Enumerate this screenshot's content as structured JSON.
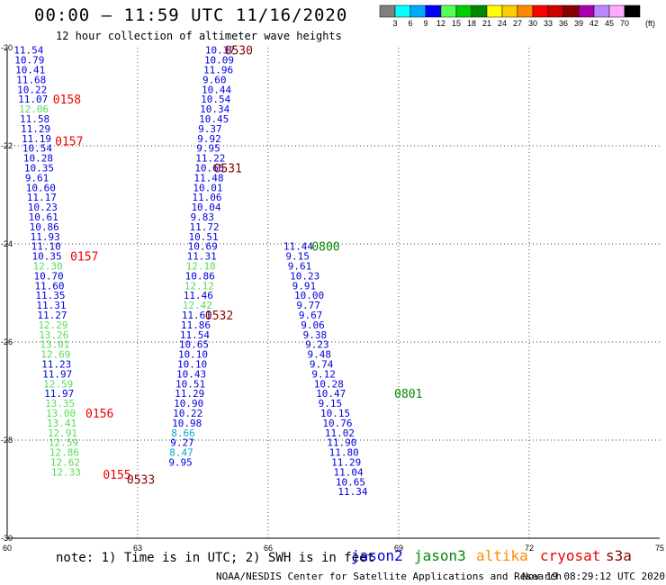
{
  "header": {
    "title": "00:00 – 11:59 UTC 11/16/2020",
    "subtitle": "12 hour collection of altimeter wave heights"
  },
  "legend": {
    "colorbar_labels": [
      "3",
      "6",
      "9",
      "12",
      "15",
      "18",
      "21",
      "24",
      "27",
      "30",
      "33",
      "36",
      "39",
      "42",
      "45",
      "70"
    ],
    "unit": "(ft)",
    "colors": [
      "#808080",
      "#00ffff",
      "#00aaff",
      "#0000ff",
      "#55ff55",
      "#00cc00",
      "#008800",
      "#ffff00",
      "#ffcc00",
      "#ff8800",
      "#ff0000",
      "#cc0000",
      "#880000",
      "#aa00aa",
      "#bb88ff",
      "#ffaaff",
      "#000000"
    ],
    "satellites": [
      {
        "name": "jason2",
        "color": "#0000dd"
      },
      {
        "name": "jason3",
        "color": "#008800"
      },
      {
        "name": "altika",
        "color": "#ff8800"
      },
      {
        "name": "cryosat",
        "color": "#ee0000"
      },
      {
        "name": "s3a",
        "color": "#880000"
      }
    ]
  },
  "footer": {
    "note": "note: 1) Time is in UTC; 2) SWH is in feet",
    "credit": "NOAA/NESDIS Center for Satellite Applications and Research",
    "date": "Nov 19 08:29:12 UTC 2020"
  },
  "chart_data": {
    "type": "scatter",
    "xlim": [
      60,
      75
    ],
    "ylim": [
      -30,
      -20
    ],
    "xticks": [
      60,
      63,
      66,
      69,
      72,
      75
    ],
    "yticks": [
      -20,
      -22,
      -24,
      -26,
      -28,
      -30
    ],
    "xtick_labels": [
      "60",
      "63",
      "66",
      "69",
      "72",
      "75"
    ],
    "ytick_labels": [
      "-20",
      "-22",
      "-24",
      "-26",
      "-28",
      "-30"
    ],
    "grid": true,
    "points": [
      {
        "x": 60.15,
        "y": -20.05,
        "label": "11.54",
        "color": "#0000dd"
      },
      {
        "x": 60.17,
        "y": -20.25,
        "label": "10.79",
        "color": "#0000dd"
      },
      {
        "x": 60.19,
        "y": -20.45,
        "label": "10.41",
        "color": "#0000dd"
      },
      {
        "x": 60.21,
        "y": -20.65,
        "label": "11.68",
        "color": "#0000dd"
      },
      {
        "x": 60.23,
        "y": -20.85,
        "label": "10.22",
        "color": "#0000dd"
      },
      {
        "x": 60.25,
        "y": -21.05,
        "label": "11.07",
        "color": "#0000dd"
      },
      {
        "x": 60.27,
        "y": -21.25,
        "label": "12.06",
        "color": "#55dd55"
      },
      {
        "x": 60.29,
        "y": -21.45,
        "label": "11.58",
        "color": "#0000dd"
      },
      {
        "x": 60.31,
        "y": -21.65,
        "label": "11.29",
        "color": "#0000dd"
      },
      {
        "x": 60.33,
        "y": -21.85,
        "label": "11.19",
        "color": "#0000dd"
      },
      {
        "x": 60.35,
        "y": -22.05,
        "label": "10.54",
        "color": "#0000dd"
      },
      {
        "x": 60.37,
        "y": -22.25,
        "label": "10.28",
        "color": "#0000dd"
      },
      {
        "x": 60.39,
        "y": -22.45,
        "label": "10.35",
        "color": "#0000dd"
      },
      {
        "x": 60.41,
        "y": -22.65,
        "label": "9.61",
        "color": "#0000dd"
      },
      {
        "x": 60.43,
        "y": -22.85,
        "label": "10.60",
        "color": "#0000dd"
      },
      {
        "x": 60.45,
        "y": -23.05,
        "label": "11.17",
        "color": "#0000dd"
      },
      {
        "x": 60.47,
        "y": -23.25,
        "label": "10.23",
        "color": "#0000dd"
      },
      {
        "x": 60.49,
        "y": -23.45,
        "label": "10.61",
        "color": "#0000dd"
      },
      {
        "x": 60.51,
        "y": -23.65,
        "label": "10.86",
        "color": "#0000dd"
      },
      {
        "x": 60.53,
        "y": -23.85,
        "label": "11.93",
        "color": "#0000dd"
      },
      {
        "x": 60.55,
        "y": -24.05,
        "label": "11.10",
        "color": "#0000dd"
      },
      {
        "x": 60.57,
        "y": -24.25,
        "label": "10.35",
        "color": "#0000dd"
      },
      {
        "x": 60.59,
        "y": -24.45,
        "label": "12.30",
        "color": "#55dd55"
      },
      {
        "x": 60.61,
        "y": -24.65,
        "label": "10.70",
        "color": "#0000dd"
      },
      {
        "x": 60.63,
        "y": -24.85,
        "label": "11.60",
        "color": "#0000dd"
      },
      {
        "x": 60.65,
        "y": -25.05,
        "label": "11.35",
        "color": "#0000dd"
      },
      {
        "x": 60.67,
        "y": -25.25,
        "label": "11.31",
        "color": "#0000dd"
      },
      {
        "x": 60.69,
        "y": -25.45,
        "label": "11.27",
        "color": "#0000dd"
      },
      {
        "x": 60.71,
        "y": -25.65,
        "label": "12.29",
        "color": "#55dd55"
      },
      {
        "x": 60.73,
        "y": -25.85,
        "label": "13.26",
        "color": "#55dd55"
      },
      {
        "x": 60.75,
        "y": -26.05,
        "label": "13.01",
        "color": "#55dd55"
      },
      {
        "x": 60.77,
        "y": -26.25,
        "label": "12.69",
        "color": "#55dd55"
      },
      {
        "x": 60.79,
        "y": -26.45,
        "label": "11.23",
        "color": "#0000dd"
      },
      {
        "x": 60.81,
        "y": -26.65,
        "label": "11.97",
        "color": "#0000dd"
      },
      {
        "x": 60.83,
        "y": -26.85,
        "label": "12.59",
        "color": "#55dd55"
      },
      {
        "x": 60.85,
        "y": -27.05,
        "label": "11.97",
        "color": "#0000dd"
      },
      {
        "x": 60.87,
        "y": -27.25,
        "label": "13.35",
        "color": "#55dd55"
      },
      {
        "x": 60.89,
        "y": -27.45,
        "label": "13.00",
        "color": "#55dd55"
      },
      {
        "x": 60.91,
        "y": -27.65,
        "label": "13.41",
        "color": "#55dd55"
      },
      {
        "x": 60.93,
        "y": -27.85,
        "label": "12.91",
        "color": "#55dd55"
      },
      {
        "x": 60.95,
        "y": -28.05,
        "label": "12.59",
        "color": "#55dd55"
      },
      {
        "x": 60.97,
        "y": -28.25,
        "label": "12.86",
        "color": "#55dd55"
      },
      {
        "x": 60.99,
        "y": -28.45,
        "label": "12.62",
        "color": "#55dd55"
      },
      {
        "x": 61.01,
        "y": -28.65,
        "label": "12.33",
        "color": "#55dd55"
      },
      {
        "x": 64.55,
        "y": -20.05,
        "label": "10.37",
        "color": "#0000dd"
      },
      {
        "x": 64.53,
        "y": -20.25,
        "label": "10.09",
        "color": "#0000dd"
      },
      {
        "x": 64.51,
        "y": -20.45,
        "label": "11.96",
        "color": "#0000dd"
      },
      {
        "x": 64.49,
        "y": -20.65,
        "label": "9.60",
        "color": "#0000dd"
      },
      {
        "x": 64.47,
        "y": -20.85,
        "label": "10.44",
        "color": "#0000dd"
      },
      {
        "x": 64.45,
        "y": -21.05,
        "label": "10.54",
        "color": "#0000dd"
      },
      {
        "x": 64.43,
        "y": -21.25,
        "label": "10.34",
        "color": "#0000dd"
      },
      {
        "x": 64.41,
        "y": -21.45,
        "label": "10.45",
        "color": "#0000dd"
      },
      {
        "x": 64.39,
        "y": -21.65,
        "label": "9.37",
        "color": "#0000dd"
      },
      {
        "x": 64.37,
        "y": -21.85,
        "label": "9.92",
        "color": "#0000dd"
      },
      {
        "x": 64.35,
        "y": -22.05,
        "label": "9.95",
        "color": "#0000dd"
      },
      {
        "x": 64.33,
        "y": -22.25,
        "label": "11.22",
        "color": "#0000dd"
      },
      {
        "x": 64.31,
        "y": -22.45,
        "label": "10.65",
        "color": "#0000dd"
      },
      {
        "x": 64.29,
        "y": -22.65,
        "label": "11.48",
        "color": "#0000dd"
      },
      {
        "x": 64.27,
        "y": -22.85,
        "label": "10.01",
        "color": "#0000dd"
      },
      {
        "x": 64.25,
        "y": -23.05,
        "label": "11.06",
        "color": "#0000dd"
      },
      {
        "x": 64.23,
        "y": -23.25,
        "label": "10.04",
        "color": "#0000dd"
      },
      {
        "x": 64.21,
        "y": -23.45,
        "label": "9.83",
        "color": "#0000dd"
      },
      {
        "x": 64.19,
        "y": -23.65,
        "label": "11.72",
        "color": "#0000dd"
      },
      {
        "x": 64.17,
        "y": -23.85,
        "label": "10.51",
        "color": "#0000dd"
      },
      {
        "x": 64.15,
        "y": -24.05,
        "label": "10.69",
        "color": "#0000dd"
      },
      {
        "x": 64.13,
        "y": -24.25,
        "label": "11.31",
        "color": "#0000dd"
      },
      {
        "x": 64.11,
        "y": -24.45,
        "label": "12.18",
        "color": "#55dd55"
      },
      {
        "x": 64.09,
        "y": -24.65,
        "label": "10.86",
        "color": "#0000dd"
      },
      {
        "x": 64.07,
        "y": -24.85,
        "label": "12.12",
        "color": "#55dd55"
      },
      {
        "x": 64.05,
        "y": -25.05,
        "label": "11.46",
        "color": "#0000dd"
      },
      {
        "x": 64.03,
        "y": -25.25,
        "label": "12.42",
        "color": "#55dd55"
      },
      {
        "x": 64.01,
        "y": -25.45,
        "label": "11.61",
        "color": "#0000dd"
      },
      {
        "x": 63.99,
        "y": -25.65,
        "label": "11.86",
        "color": "#0000dd"
      },
      {
        "x": 63.97,
        "y": -25.85,
        "label": "11.54",
        "color": "#0000dd"
      },
      {
        "x": 63.95,
        "y": -26.05,
        "label": "10.65",
        "color": "#0000dd"
      },
      {
        "x": 63.93,
        "y": -26.25,
        "label": "10.10",
        "color": "#0000dd"
      },
      {
        "x": 63.91,
        "y": -26.45,
        "label": "10.10",
        "color": "#0000dd"
      },
      {
        "x": 63.89,
        "y": -26.65,
        "label": "10.43",
        "color": "#0000dd"
      },
      {
        "x": 63.87,
        "y": -26.85,
        "label": "10.51",
        "color": "#0000dd"
      },
      {
        "x": 63.85,
        "y": -27.05,
        "label": "11.29",
        "color": "#0000dd"
      },
      {
        "x": 63.83,
        "y": -27.25,
        "label": "10.90",
        "color": "#0000dd"
      },
      {
        "x": 63.81,
        "y": -27.45,
        "label": "10.22",
        "color": "#0000dd"
      },
      {
        "x": 63.79,
        "y": -27.65,
        "label": "10.98",
        "color": "#0000dd"
      },
      {
        "x": 63.77,
        "y": -27.85,
        "label": "8.66",
        "color": "#00aacc"
      },
      {
        "x": 63.75,
        "y": -28.05,
        "label": "9.27",
        "color": "#0000dd"
      },
      {
        "x": 63.73,
        "y": -28.25,
        "label": "8.47",
        "color": "#00aacc"
      },
      {
        "x": 63.71,
        "y": -28.45,
        "label": "9.95",
        "color": "#0000dd"
      },
      {
        "x": 66.35,
        "y": -24.05,
        "label": "11.44",
        "color": "#0000dd"
      },
      {
        "x": 66.4,
        "y": -24.25,
        "label": "9.15",
        "color": "#0000dd"
      },
      {
        "x": 66.45,
        "y": -24.45,
        "label": "9.61",
        "color": "#0000dd"
      },
      {
        "x": 66.5,
        "y": -24.65,
        "label": "10.23",
        "color": "#0000dd"
      },
      {
        "x": 66.55,
        "y": -24.85,
        "label": "9.91",
        "color": "#0000dd"
      },
      {
        "x": 66.6,
        "y": -25.05,
        "label": "10.00",
        "color": "#0000dd"
      },
      {
        "x": 66.65,
        "y": -25.25,
        "label": "9.77",
        "color": "#0000dd"
      },
      {
        "x": 66.7,
        "y": -25.45,
        "label": "9.67",
        "color": "#0000dd"
      },
      {
        "x": 66.75,
        "y": -25.65,
        "label": "9.06",
        "color": "#0000dd"
      },
      {
        "x": 66.8,
        "y": -25.85,
        "label": "9.38",
        "color": "#0000dd"
      },
      {
        "x": 66.85,
        "y": -26.05,
        "label": "9.23",
        "color": "#0000dd"
      },
      {
        "x": 66.9,
        "y": -26.25,
        "label": "9.48",
        "color": "#0000dd"
      },
      {
        "x": 66.95,
        "y": -26.45,
        "label": "9.74",
        "color": "#0000dd"
      },
      {
        "x": 67.0,
        "y": -26.65,
        "label": "9.12",
        "color": "#0000dd"
      },
      {
        "x": 67.05,
        "y": -26.85,
        "label": "10.28",
        "color": "#0000dd"
      },
      {
        "x": 67.1,
        "y": -27.05,
        "label": "10.47",
        "color": "#0000dd"
      },
      {
        "x": 67.15,
        "y": -27.25,
        "label": "9.15",
        "color": "#0000dd"
      },
      {
        "x": 67.2,
        "y": -27.45,
        "label": "10.15",
        "color": "#0000dd"
      },
      {
        "x": 67.25,
        "y": -27.65,
        "label": "10.76",
        "color": "#0000dd"
      },
      {
        "x": 67.3,
        "y": -27.85,
        "label": "11.02",
        "color": "#0000dd"
      },
      {
        "x": 67.35,
        "y": -28.05,
        "label": "11.90",
        "color": "#0000dd"
      },
      {
        "x": 67.4,
        "y": -28.25,
        "label": "11.80",
        "color": "#0000dd"
      },
      {
        "x": 67.45,
        "y": -28.45,
        "label": "11.29",
        "color": "#0000dd"
      },
      {
        "x": 67.5,
        "y": -28.65,
        "label": "11.04",
        "color": "#0000dd"
      },
      {
        "x": 67.55,
        "y": -28.85,
        "label": "10.65",
        "color": "#0000dd"
      },
      {
        "x": 67.6,
        "y": -29.05,
        "label": "11.34",
        "color": "#0000dd"
      }
    ],
    "time_labels": [
      {
        "x": 65.0,
        "y": -20.05,
        "label": "0530",
        "color": "#880000"
      },
      {
        "x": 61.05,
        "y": -21.05,
        "label": "0158",
        "color": "#ee0000"
      },
      {
        "x": 61.1,
        "y": -21.9,
        "label": "0157",
        "color": "#ee0000"
      },
      {
        "x": 64.75,
        "y": -22.45,
        "label": "0531",
        "color": "#880000"
      },
      {
        "x": 61.45,
        "y": -24.25,
        "label": "0157",
        "color": "#ee0000"
      },
      {
        "x": 67.0,
        "y": -24.05,
        "label": "0800",
        "color": "#008800"
      },
      {
        "x": 64.55,
        "y": -25.45,
        "label": "0532",
        "color": "#880000"
      },
      {
        "x": 68.9,
        "y": -27.05,
        "label": "0801",
        "color": "#008800"
      },
      {
        "x": 61.8,
        "y": -27.45,
        "label": "0156",
        "color": "#ee0000"
      },
      {
        "x": 62.2,
        "y": -28.7,
        "label": "0155",
        "color": "#ee0000"
      },
      {
        "x": 62.75,
        "y": -28.8,
        "label": "0533",
        "color": "#880000"
      }
    ]
  }
}
